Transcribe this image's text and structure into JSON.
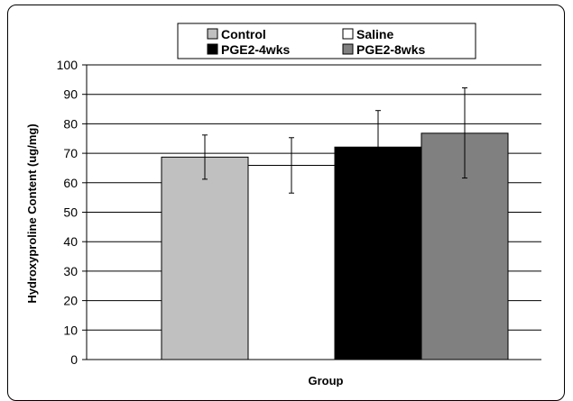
{
  "chart_data": {
    "type": "bar",
    "categories": [
      "Control",
      "Saline",
      "PGE2-4wks",
      "PGE2-8wks"
    ],
    "series": [
      {
        "name": "Hydroxyproline Content",
        "values": [
          68.7,
          65.9,
          72.1,
          76.8
        ],
        "error_low": [
          61.2,
          56.5,
          59.7,
          61.6
        ],
        "error_high": [
          76.2,
          75.3,
          84.5,
          92.2
        ],
        "colors": [
          "#c0c0c0",
          "#ffffff",
          "#000000",
          "#808080"
        ]
      }
    ],
    "legend": {
      "placement": "top",
      "entries": [
        {
          "label": "Control",
          "color": "#c0c0c0"
        },
        {
          "label": "Saline",
          "color": "#ffffff"
        },
        {
          "label": "PGE2-4wks",
          "color": "#000000"
        },
        {
          "label": "PGE2-8wks",
          "color": "#808080"
        }
      ]
    },
    "xlabel": "Group",
    "ylabel": "Hydroxyproline Content (ug/mg)",
    "ylim": [
      0,
      100
    ],
    "yticks": [
      "0",
      "10",
      "20",
      "30",
      "40",
      "50",
      "60",
      "70",
      "80",
      "90",
      "100"
    ],
    "grid": true
  }
}
